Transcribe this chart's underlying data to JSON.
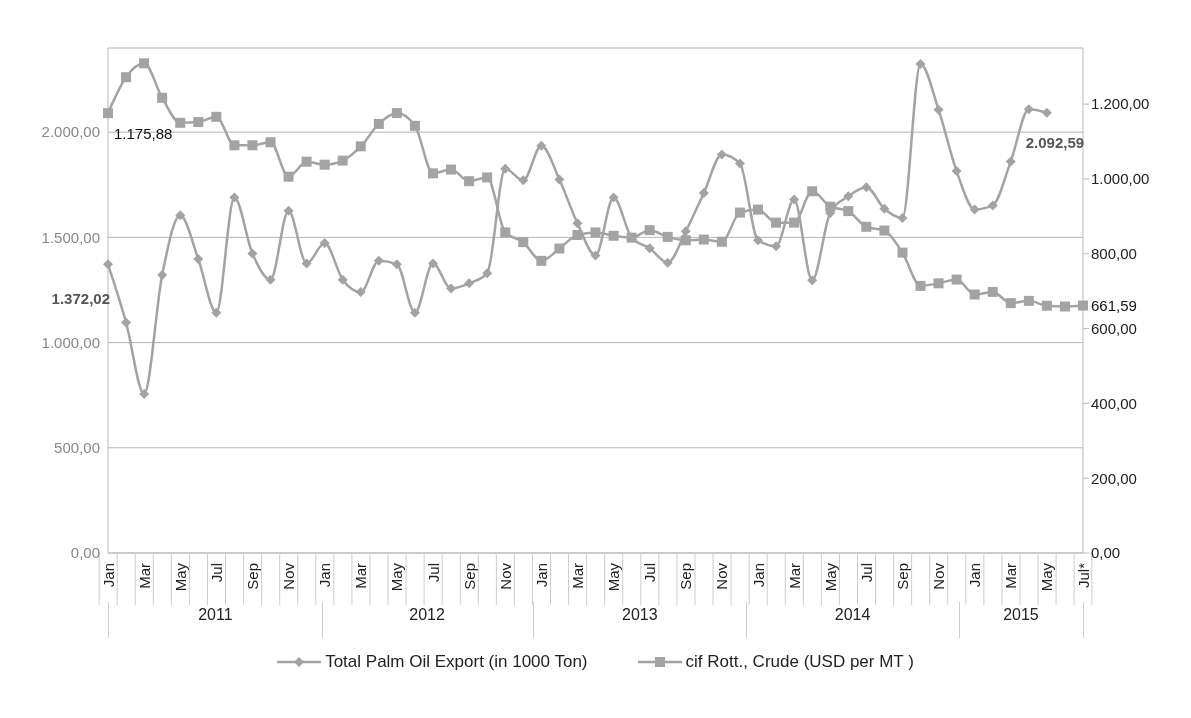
{
  "chart_data": {
    "type": "line",
    "categories": [
      "Jan",
      null,
      "Mar",
      null,
      "May",
      null,
      "Jul",
      null,
      "Sep",
      null,
      "Nov",
      null,
      "Jan",
      null,
      "Mar",
      null,
      "May",
      null,
      "Jul",
      null,
      "Sep",
      null,
      "Nov",
      null,
      "Jan",
      null,
      "Mar",
      null,
      "May",
      null,
      "Jul",
      null,
      "Sep",
      null,
      "Nov",
      null,
      "Jan",
      null,
      "Mar",
      null,
      "May",
      null,
      "Jul",
      null,
      "Sep",
      null,
      "Nov",
      null,
      "Jan",
      null,
      "Mar",
      null,
      "May",
      null,
      "Jul*"
    ],
    "series": [
      {
        "name": "Total Palm Oil Export (in 1000 Ton)",
        "color": "#a3a3a3",
        "marker": "diamond",
        "values": [
          1372.02,
          1096,
          756,
          1321,
          1605,
          1397,
          1142,
          1690,
          1423,
          1299,
          1626,
          1376,
          1473,
          1299,
          1240,
          1389,
          1372,
          1142,
          1376,
          1257,
          1282,
          1329,
          1826,
          1771,
          1936,
          1775,
          1567,
          1414,
          1690,
          1499,
          1448,
          1380,
          1529,
          1711,
          1894,
          1851,
          1486,
          1458,
          1680,
          1296,
          1616,
          1695,
          1738,
          1636,
          1592,
          2324,
          2107,
          1815,
          1633,
          1652,
          1861,
          2109,
          2092.59,
          null,
          null
        ],
        "value_labels": [
          "1.372,02",
          null,
          null,
          null,
          null,
          null,
          null,
          null,
          null,
          null,
          null,
          null,
          null,
          null,
          null,
          null,
          null,
          null,
          null,
          null,
          null,
          null,
          null,
          null,
          null,
          null,
          null,
          null,
          null,
          null,
          null,
          null,
          null,
          null,
          null,
          null,
          null,
          null,
          null,
          null,
          null,
          null,
          null,
          null,
          null,
          null,
          null,
          null,
          null,
          null,
          null,
          null,
          "2.092,59",
          null,
          null
        ]
      },
      {
        "name": "cif Rott., Crude (USD per MT )",
        "color": "#a3a3a3",
        "marker": "square",
        "axis": "y2",
        "values": [
          1175.88,
          1272,
          1309,
          1217,
          1150,
          1152,
          1166,
          1090,
          1090,
          1098,
          1006,
          1046,
          1038,
          1049,
          1087,
          1147,
          1176,
          1142,
          1015,
          1025,
          994,
          1004,
          857,
          831,
          781,
          814,
          850,
          857,
          848,
          843,
          863,
          845,
          836,
          838,
          832,
          910,
          918,
          883,
          883,
          967,
          926,
          914,
          872,
          862,
          803,
          714,
          721,
          731,
          691,
          698,
          668,
          674,
          661,
          659,
          661.59
        ],
        "value_labels": [
          "1.175,88",
          null,
          null,
          null,
          null,
          null,
          null,
          null,
          null,
          null,
          null,
          null,
          null,
          null,
          null,
          null,
          null,
          null,
          null,
          null,
          null,
          null,
          null,
          null,
          null,
          null,
          null,
          null,
          null,
          null,
          null,
          null,
          null,
          null,
          null,
          null,
          null,
          null,
          null,
          null,
          null,
          null,
          null,
          null,
          null,
          null,
          null,
          null,
          null,
          null,
          null,
          null,
          null,
          null,
          "661,59"
        ]
      }
    ],
    "ylim": [
      0,
      2400
    ],
    "yticks": [
      {
        "value": 0,
        "label": "0,00"
      },
      {
        "value": 500,
        "label": "500,00"
      },
      {
        "value": 1000,
        "label": "1.000,00"
      },
      {
        "value": 1500,
        "label": "1.500,00"
      },
      {
        "value": 2000,
        "label": "2.000,00"
      }
    ],
    "y2lim": [
      0,
      1350
    ],
    "y2ticks": [
      {
        "value": 0,
        "label": "0,00"
      },
      {
        "value": 200,
        "label": "200,00"
      },
      {
        "value": 400,
        "label": "400,00"
      },
      {
        "value": 600,
        "label": "600,00"
      },
      {
        "value": 800,
        "label": "800,00"
      },
      {
        "value": 1000,
        "label": "1.000,00"
      },
      {
        "value": 1200,
        "label": "1.200,00"
      }
    ],
    "annotations": [
      "2011",
      "2012",
      "2013",
      "2014",
      "2015"
    ],
    "grid": "y",
    "legend": "bottom"
  }
}
